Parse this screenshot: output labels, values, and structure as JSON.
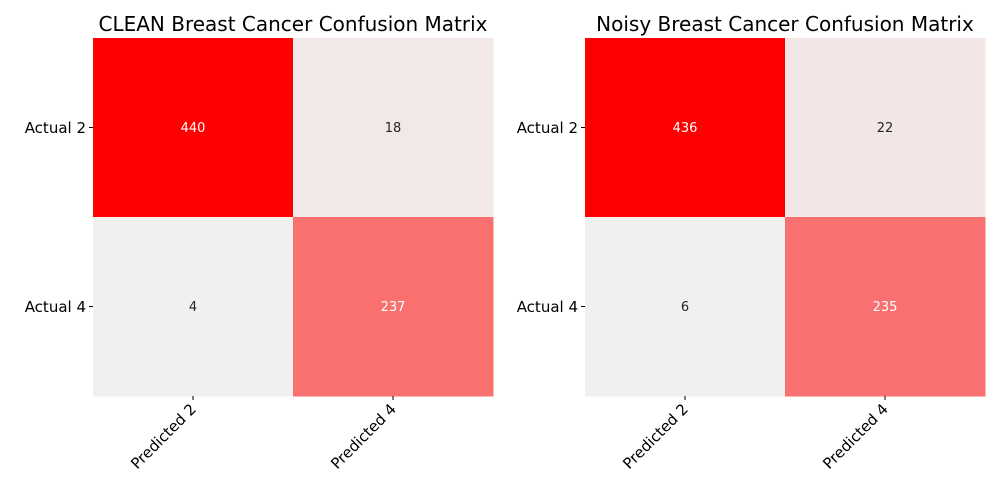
{
  "chart_data": [
    {
      "type": "heatmap",
      "title": "CLEAN Breast Cancer Confusion Matrix",
      "row_labels": [
        "Actual 2",
        "Actual 4"
      ],
      "col_labels": [
        "Predicted 2",
        "Predicted 4"
      ],
      "values": [
        [
          440,
          18
        ],
        [
          4,
          237
        ]
      ],
      "colormap": {
        "low": "#f2f0ef",
        "high": "#ff0000"
      },
      "annotations": true,
      "colorbar": false
    },
    {
      "type": "heatmap",
      "title": "Noisy Breast Cancer Confusion Matrix",
      "row_labels": [
        "Actual 2",
        "Actual 4"
      ],
      "col_labels": [
        "Predicted 2",
        "Predicted 4"
      ],
      "values": [
        [
          436,
          22
        ],
        [
          6,
          235
        ]
      ],
      "colormap": {
        "low": "#f2f0ef",
        "high": "#ff0000"
      },
      "annotations": true,
      "colorbar": false
    }
  ]
}
